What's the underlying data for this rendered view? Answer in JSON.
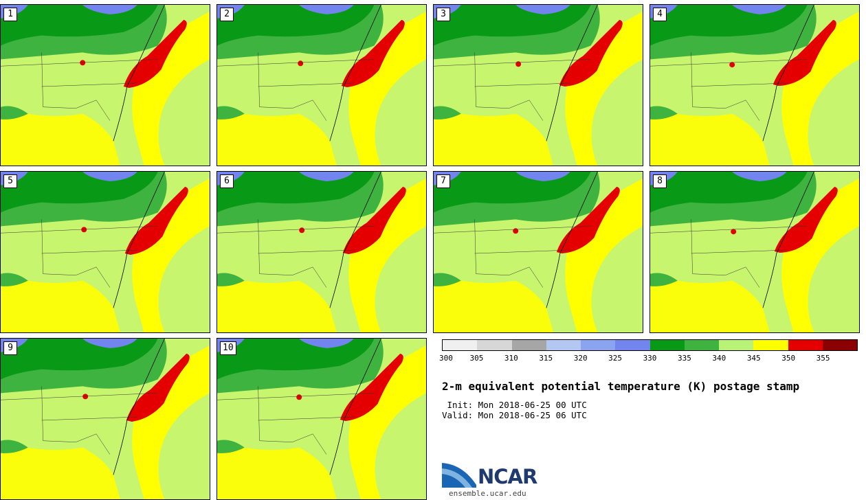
{
  "panels": [
    "1",
    "2",
    "3",
    "4",
    "5",
    "6",
    "7",
    "8",
    "9",
    "10"
  ],
  "colorbar": {
    "colors": [
      "#f0f0f0",
      "#d7d7d7",
      "#a6a6a6",
      "#b2c8f3",
      "#8ba4f0",
      "#7285ee",
      "#089916",
      "#3fb33f",
      "#b8f377",
      "#ffff00",
      "#e50000",
      "#8b0000"
    ],
    "ticks": [
      "300",
      "305",
      "310",
      "315",
      "320",
      "325",
      "330",
      "335",
      "340",
      "345",
      "350",
      "355"
    ]
  },
  "map_colors": {
    "ocean": "#c7f56e",
    "gulf": "#ffff00",
    "land_dark": "#089916",
    "land_mid": "#3fb33f",
    "cold": "#7285ee",
    "hot": "#e50000"
  },
  "title": "2-m equivalent potential temperature (K) postage stamp",
  "init": " Init: Mon 2018-06-25 00 UTC",
  "valid": "Valid: Mon 2018-06-25 06 UTC",
  "logo": {
    "word": "NCAR",
    "url": "ensemble.ucar.edu"
  }
}
